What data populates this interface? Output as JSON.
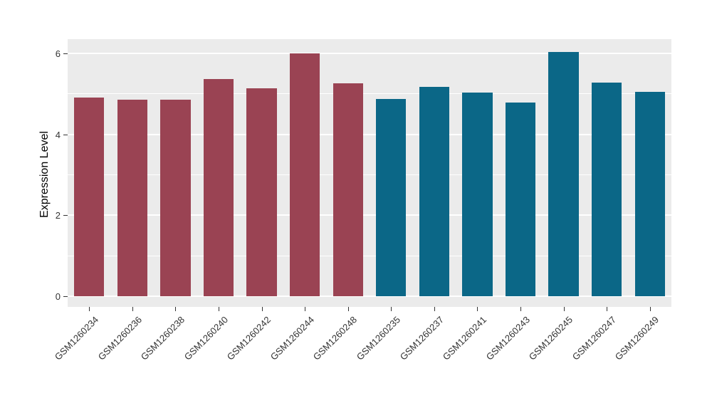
{
  "chart_data": {
    "type": "bar",
    "title": "",
    "xlabel": "",
    "ylabel": "Expression Level",
    "categories": [
      "GSM1260234",
      "GSM1260236",
      "GSM1260238",
      "GSM1260240",
      "GSM1260242",
      "GSM1260244",
      "GSM1260248",
      "GSM1260235",
      "GSM1260237",
      "GSM1260241",
      "GSM1260243",
      "GSM1260245",
      "GSM1260247",
      "GSM1260249"
    ],
    "values": [
      4.91,
      4.86,
      4.86,
      5.37,
      5.14,
      6.0,
      5.26,
      4.87,
      5.17,
      5.03,
      4.78,
      6.03,
      5.28,
      5.05
    ],
    "bar_colors": [
      "#9A4353",
      "#9A4353",
      "#9A4353",
      "#9A4353",
      "#9A4353",
      "#9A4353",
      "#9A4353",
      "#0B6787",
      "#0B6787",
      "#0B6787",
      "#0B6787",
      "#0B6787",
      "#0B6787",
      "#0B6787"
    ],
    "group_colors": {
      "left_group": "#9A4353",
      "right_group": "#0B6787"
    },
    "y_axis": {
      "ticks": [
        0,
        2,
        4,
        6
      ],
      "minor_ticks": [
        1,
        3,
        5
      ],
      "lim": [
        -0.26,
        6.35
      ]
    },
    "legend": "none",
    "grid": "on",
    "style": {
      "panel_bg": "#EBEBEB",
      "grid_color": "#FFFFFF",
      "tick_color": "#333333",
      "axis_text_color": "#333333",
      "background": "#FFFFFF"
    }
  }
}
